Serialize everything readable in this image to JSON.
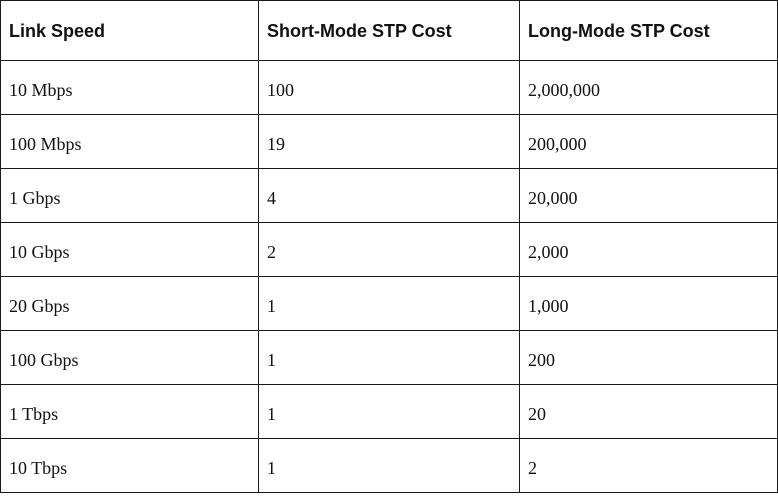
{
  "table": {
    "headers": [
      "Link Speed",
      "Short-Mode STP Cost",
      "Long-Mode STP Cost"
    ],
    "rows": [
      [
        "10 Mbps",
        "100",
        "2,000,000"
      ],
      [
        "100 Mbps",
        "19",
        "200,000"
      ],
      [
        "1 Gbps",
        "4",
        "20,000"
      ],
      [
        "10 Gbps",
        "2",
        "2,000"
      ],
      [
        "20 Gbps",
        "1",
        "1,000"
      ],
      [
        "100 Gbps",
        "1",
        "200"
      ],
      [
        "1 Tbps",
        "1",
        "20"
      ],
      [
        "10 Tbps",
        "1",
        "2"
      ]
    ]
  }
}
